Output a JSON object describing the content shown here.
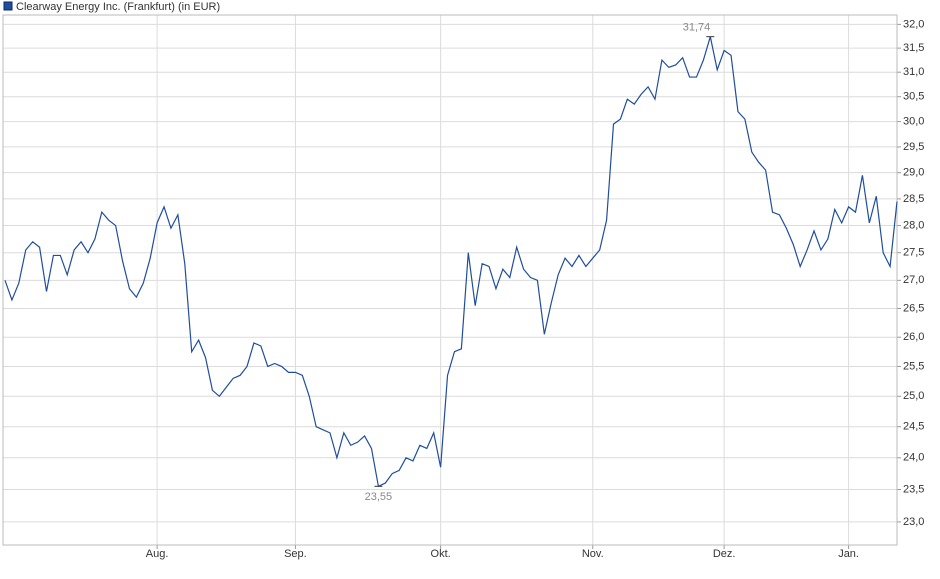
{
  "chart_data": {
    "type": "line",
    "log_scale": true,
    "grid": true,
    "categories": [
      null,
      null,
      null,
      null,
      null,
      null,
      null,
      null,
      null,
      null,
      null,
      null,
      null,
      null,
      null,
      null,
      null,
      null,
      null,
      null,
      null,
      null,
      "Aug.",
      null,
      null,
      null,
      null,
      null,
      null,
      null,
      null,
      null,
      null,
      null,
      null,
      null,
      null,
      null,
      null,
      null,
      null,
      null,
      "Sep.",
      null,
      null,
      null,
      null,
      null,
      null,
      null,
      null,
      null,
      null,
      null,
      null,
      null,
      null,
      null,
      null,
      null,
      null,
      null,
      null,
      "Okt.",
      null,
      null,
      null,
      null,
      null,
      null,
      null,
      null,
      null,
      null,
      null,
      null,
      null,
      null,
      null,
      null,
      null,
      null,
      null,
      null,
      null,
      "Nov.",
      null,
      null,
      null,
      null,
      null,
      null,
      null,
      null,
      null,
      null,
      null,
      null,
      null,
      null,
      null,
      null,
      null,
      null,
      "Dez.",
      null,
      null,
      null,
      null,
      null,
      null,
      null,
      null,
      null,
      null,
      null,
      null,
      null,
      null,
      null,
      null,
      null,
      "Jan.",
      null,
      null,
      null,
      null,
      null,
      null,
      null
    ],
    "series": [
      {
        "name": "Clearway Energy Inc. (Frankfurt) (in EUR)",
        "color": "#1f4e9c",
        "values": [
          27.0,
          26.65,
          26.95,
          27.55,
          27.7,
          27.6,
          26.8,
          27.45,
          27.45,
          27.1,
          27.55,
          27.7,
          27.5,
          27.75,
          28.25,
          28.1,
          28.0,
          27.35,
          26.85,
          26.7,
          26.95,
          27.4,
          28.05,
          28.35,
          27.95,
          28.2,
          27.3,
          25.75,
          25.95,
          25.65,
          25.1,
          25.0,
          25.15,
          25.3,
          25.35,
          25.5,
          25.9,
          25.85,
          25.5,
          25.55,
          25.5,
          25.4,
          25.4,
          25.35,
          25.0,
          24.5,
          24.45,
          24.4,
          24.0,
          24.4,
          24.2,
          24.25,
          24.35,
          24.15,
          23.55,
          23.6,
          23.75,
          23.8,
          24.0,
          23.95,
          24.2,
          24.15,
          24.4,
          23.85,
          25.35,
          25.75,
          25.8,
          27.5,
          26.55,
          27.3,
          27.25,
          26.85,
          27.2,
          27.05,
          27.6,
          27.2,
          27.05,
          27.0,
          26.05,
          26.6,
          27.1,
          27.4,
          27.25,
          27.45,
          27.25,
          27.4,
          27.55,
          28.1,
          29.95,
          30.05,
          30.45,
          30.35,
          30.55,
          30.7,
          30.45,
          31.25,
          31.1,
          31.15,
          31.3,
          30.9,
          30.9,
          31.25,
          31.74,
          31.05,
          31.45,
          31.35,
          30.2,
          30.05,
          29.4,
          29.2,
          29.05,
          28.25,
          28.2,
          27.95,
          27.65,
          27.25,
          27.55,
          27.9,
          27.55,
          27.75,
          28.3,
          28.05,
          28.35,
          28.25,
          28.95,
          28.05,
          28.55,
          27.5,
          27.25,
          28.45
        ]
      }
    ],
    "annotations": [
      {
        "label": "31,74",
        "value": 31.74
      },
      {
        "label": "23,55",
        "value": 23.55
      }
    ],
    "ylim": [
      22.65,
      32.2
    ],
    "yticks": [
      {
        "value": 23,
        "label": "23,0"
      },
      {
        "value": 23.5,
        "label": "23,5"
      },
      {
        "value": 24,
        "label": "24,0"
      },
      {
        "value": 24.5,
        "label": "24,5"
      },
      {
        "value": 25,
        "label": "25,0"
      },
      {
        "value": 25.5,
        "label": "25,5"
      },
      {
        "value": 26,
        "label": "26,0"
      },
      {
        "value": 26.5,
        "label": "26,5"
      },
      {
        "value": 27,
        "label": "27,0"
      },
      {
        "value": 27.5,
        "label": "27,5"
      },
      {
        "value": 28,
        "label": "28,0"
      },
      {
        "value": 28.5,
        "label": "28,5"
      },
      {
        "value": 29,
        "label": "29,0"
      },
      {
        "value": 29.5,
        "label": "29,5"
      },
      {
        "value": 30,
        "label": "30,0"
      },
      {
        "value": 30.5,
        "label": "30,5"
      },
      {
        "value": 31,
        "label": "31,0"
      },
      {
        "value": 31.5,
        "label": "31,5"
      },
      {
        "value": 32,
        "label": "32,0"
      }
    ]
  }
}
